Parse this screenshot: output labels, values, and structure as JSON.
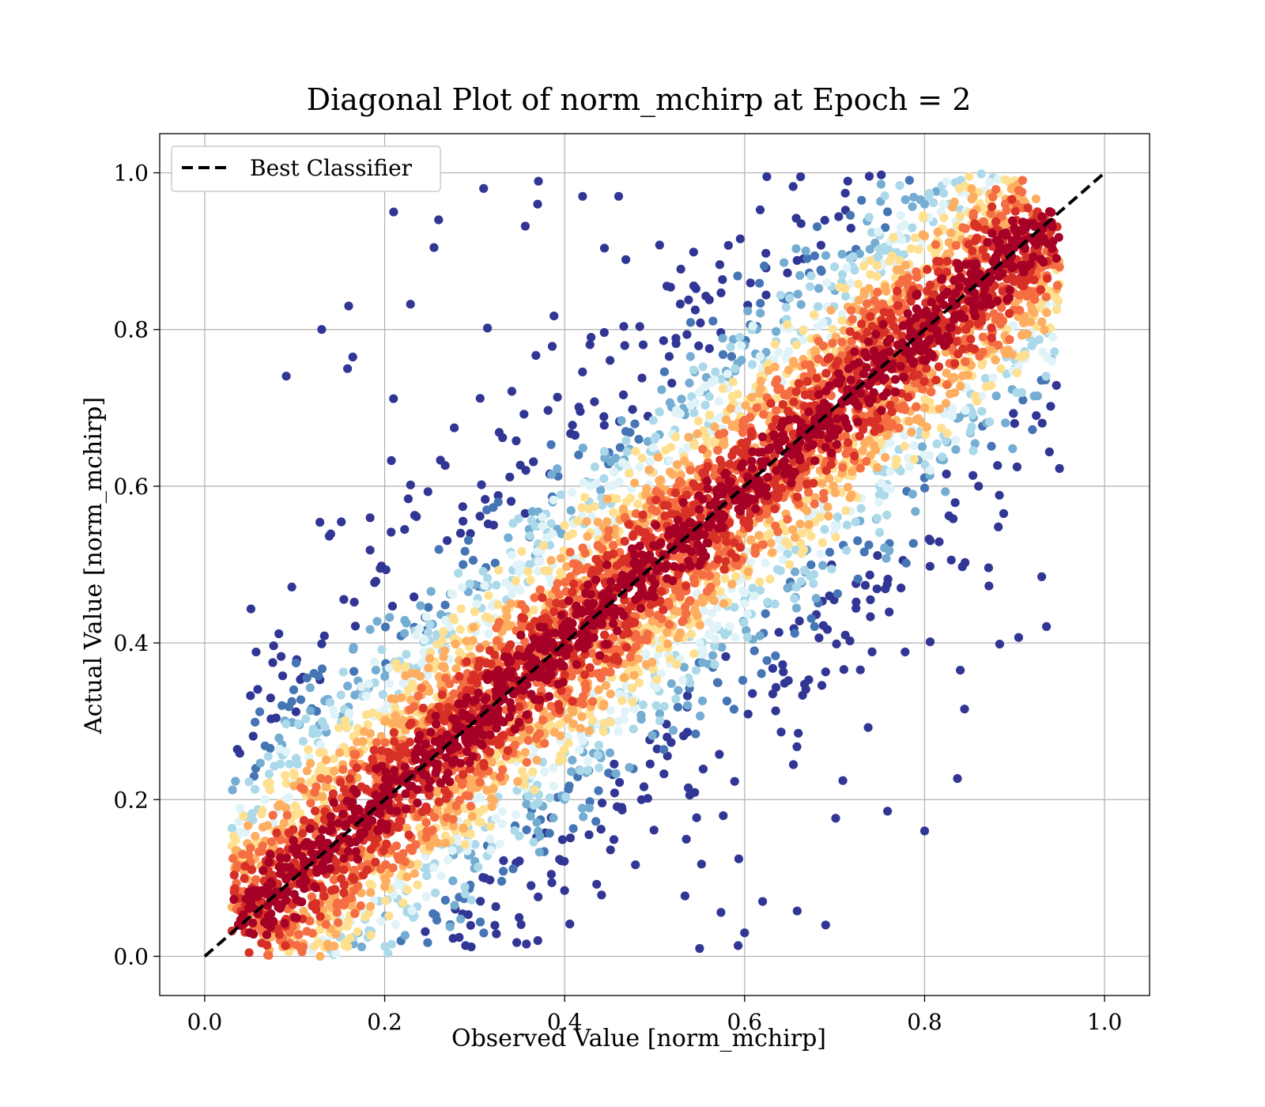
{
  "chart_data": {
    "type": "scatter",
    "title": "Diagonal Plot of norm_mchirp at Epoch = 2",
    "xlabel": "Observed Value [norm_mchirp]",
    "ylabel": "Actual Value [norm_mchirp]",
    "xlim": [
      -0.05,
      1.05
    ],
    "ylim": [
      -0.05,
      1.05
    ],
    "xticks": [
      0.0,
      0.2,
      0.4,
      0.6,
      0.8,
      1.0
    ],
    "yticks": [
      0.0,
      0.2,
      0.4,
      0.6,
      0.8,
      1.0
    ],
    "xtick_labels": [
      "0.0",
      "0.2",
      "0.4",
      "0.6",
      "0.8",
      "1.0"
    ],
    "ytick_labels": [
      "0.0",
      "0.2",
      "0.4",
      "0.6",
      "0.8",
      "1.0"
    ],
    "grid": true,
    "legend_position": "upper-left",
    "legend": [
      {
        "label": "Best Classifier",
        "style": "dashed",
        "color": "#000000"
      }
    ],
    "reference_line": {
      "name": "Best Classifier",
      "x": [
        0.0,
        1.0
      ],
      "y": [
        0.0,
        1.0
      ],
      "color": "#000000",
      "dash": true
    },
    "colormap": "RdYlBu_r (color = point density)",
    "colors": [
      "#313695",
      "#4575b4",
      "#74add1",
      "#abd9e9",
      "#e0f3f8",
      "#fee090",
      "#fdae61",
      "#f46d43",
      "#d73027",
      "#a50026"
    ],
    "series": [
      {
        "kind": "density-scatter",
        "points": [
          [
            0.05,
            0.03
          ],
          [
            0.07,
            0.06
          ],
          [
            0.09,
            0.08
          ],
          [
            0.11,
            0.1
          ],
          [
            0.13,
            0.13
          ],
          [
            0.15,
            0.15
          ],
          [
            0.17,
            0.17
          ],
          [
            0.19,
            0.19
          ],
          [
            0.21,
            0.21
          ],
          [
            0.23,
            0.23
          ],
          [
            0.25,
            0.25
          ],
          [
            0.27,
            0.27
          ],
          [
            0.29,
            0.29
          ],
          [
            0.31,
            0.31
          ],
          [
            0.33,
            0.33
          ],
          [
            0.35,
            0.35
          ],
          [
            0.37,
            0.37
          ],
          [
            0.39,
            0.39
          ],
          [
            0.41,
            0.41
          ],
          [
            0.43,
            0.43
          ],
          [
            0.45,
            0.45
          ],
          [
            0.47,
            0.47
          ],
          [
            0.49,
            0.49
          ],
          [
            0.51,
            0.51
          ],
          [
            0.53,
            0.53
          ],
          [
            0.55,
            0.55
          ],
          [
            0.57,
            0.57
          ],
          [
            0.59,
            0.59
          ],
          [
            0.61,
            0.61
          ],
          [
            0.63,
            0.63
          ],
          [
            0.65,
            0.65
          ],
          [
            0.67,
            0.67
          ],
          [
            0.69,
            0.69
          ],
          [
            0.71,
            0.71
          ],
          [
            0.73,
            0.73
          ],
          [
            0.75,
            0.75
          ],
          [
            0.77,
            0.77
          ],
          [
            0.79,
            0.79
          ],
          [
            0.81,
            0.81
          ],
          [
            0.83,
            0.83
          ],
          [
            0.85,
            0.85
          ],
          [
            0.87,
            0.87
          ],
          [
            0.89,
            0.89
          ],
          [
            0.91,
            0.91
          ],
          [
            0.93,
            0.93
          ],
          [
            0.1,
            0.18
          ],
          [
            0.15,
            0.26
          ],
          [
            0.2,
            0.3
          ],
          [
            0.25,
            0.38
          ],
          [
            0.3,
            0.44
          ],
          [
            0.35,
            0.5
          ],
          [
            0.4,
            0.55
          ],
          [
            0.45,
            0.6
          ],
          [
            0.5,
            0.66
          ],
          [
            0.55,
            0.72
          ],
          [
            0.6,
            0.78
          ],
          [
            0.65,
            0.84
          ],
          [
            0.7,
            0.88
          ],
          [
            0.75,
            0.92
          ],
          [
            0.8,
            0.96
          ],
          [
            0.85,
            0.98
          ],
          [
            0.9,
            0.99
          ],
          [
            0.15,
            0.05
          ],
          [
            0.2,
            0.1
          ],
          [
            0.25,
            0.14
          ],
          [
            0.3,
            0.18
          ],
          [
            0.35,
            0.22
          ],
          [
            0.4,
            0.26
          ],
          [
            0.45,
            0.3
          ],
          [
            0.5,
            0.35
          ],
          [
            0.55,
            0.4
          ],
          [
            0.6,
            0.45
          ],
          [
            0.65,
            0.5
          ],
          [
            0.7,
            0.55
          ],
          [
            0.75,
            0.6
          ],
          [
            0.8,
            0.64
          ],
          [
            0.85,
            0.7
          ],
          [
            0.9,
            0.75
          ],
          [
            0.13,
            0.8
          ],
          [
            0.16,
            0.83
          ],
          [
            0.21,
            0.95
          ],
          [
            0.26,
            0.94
          ],
          [
            0.31,
            0.98
          ],
          [
            0.37,
            0.96
          ],
          [
            0.42,
            0.97
          ],
          [
            0.46,
            0.97
          ],
          [
            0.8,
            0.16
          ],
          [
            0.69,
            0.04
          ],
          [
            0.6,
            0.03
          ],
          [
            0.55,
            0.01
          ],
          [
            0.62,
            0.07
          ],
          [
            0.9,
            0.68
          ],
          [
            0.86,
            0.6
          ]
        ]
      }
    ]
  }
}
